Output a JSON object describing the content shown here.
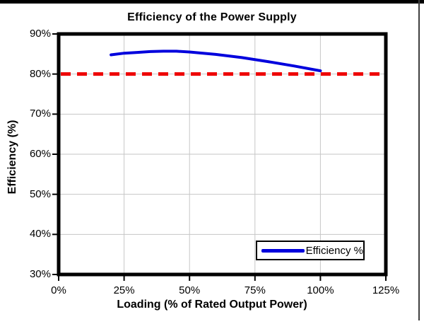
{
  "frame": {
    "top_border_color": "#000000",
    "right_border_color": "#3f3f3f",
    "background": "#ffffff"
  },
  "colors": {
    "series_line": "#0000dd",
    "threshold_line": "#ee0000",
    "gridline": "#c6c6c6",
    "plot_border": "#000000",
    "text": "#000000"
  },
  "chart_data": {
    "type": "line",
    "title": "Efficiency of the Power Supply",
    "xlabel": "Loading (% of Rated Output Power)",
    "ylabel": "Efficiency (%)",
    "xlim": [
      0,
      125
    ],
    "ylim": [
      30,
      90
    ],
    "x_ticks": [
      0,
      25,
      50,
      75,
      100,
      125
    ],
    "x_tick_labels": [
      "0%",
      "25%",
      "50%",
      "75%",
      "100%",
      "125%"
    ],
    "y_ticks": [
      90,
      80,
      70,
      60,
      50,
      40,
      30
    ],
    "y_tick_labels": [
      "90%",
      "80%",
      "70%",
      "60%",
      "50%",
      "40%",
      "30%"
    ],
    "grid": true,
    "grid_color": "#c6c6c6",
    "legend": {
      "position": "bottom-right",
      "entries": [
        {
          "label": "Efficiency %",
          "color": "#0000dd"
        }
      ]
    },
    "series": [
      {
        "name": "Efficiency %",
        "type": "line",
        "color": "#0000dd",
        "x": [
          20,
          25,
          30,
          35,
          40,
          45,
          50,
          60,
          70,
          80,
          90,
          100
        ],
        "y": [
          84.8,
          85.2,
          85.4,
          85.6,
          85.7,
          85.7,
          85.5,
          84.9,
          84.1,
          83.1,
          82.0,
          80.8
        ]
      }
    ],
    "threshold_line": {
      "y": 80,
      "color": "#ee0000",
      "style": "dashed"
    }
  }
}
